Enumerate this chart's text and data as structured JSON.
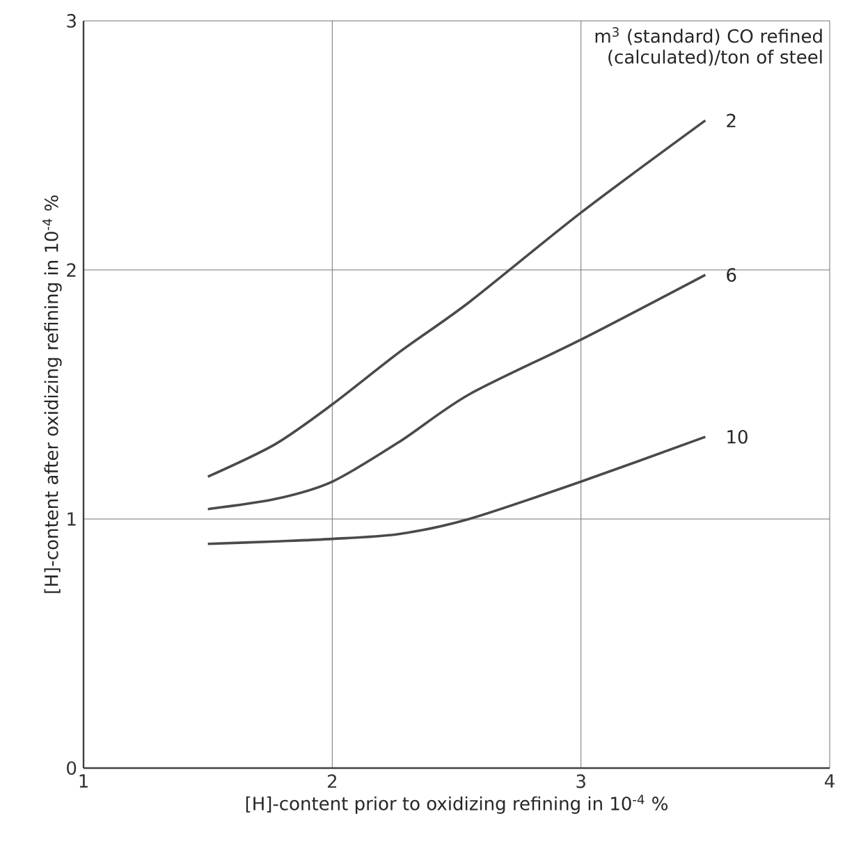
{
  "chart_data": {
    "type": "line",
    "xlabel": "[H]-content prior to oxidizing refining in 10$^{-4}$ %",
    "ylabel": "[H]-content after oxidizing refining in 10$^{-4}$ %",
    "legend_title": "m$^{3}$ (standard) CO refined (calculated)/ton of steel",
    "x": [
      1.5,
      1.77,
      2,
      2.27,
      2.55,
      3,
      3.5
    ],
    "series": [
      {
        "name": "2",
        "color": "#4a4a4a",
        "values": [
          1.17,
          1.3,
          1.46,
          1.67,
          1.87,
          2.23,
          2.6
        ]
      },
      {
        "name": "6",
        "color": "#4a4a4a",
        "values": [
          1.04,
          1.08,
          1.15,
          1.31,
          1.5,
          1.72,
          1.98
        ]
      },
      {
        "name": "10",
        "color": "#4a4a4a",
        "values": [
          0.9,
          0.91,
          0.92,
          0.94,
          1.0,
          1.15,
          1.33
        ]
      }
    ],
    "xlim": [
      1,
      4
    ],
    "ylim": [
      0,
      3
    ],
    "xticks": [
      1,
      2,
      3,
      4
    ],
    "yticks": [
      0,
      1,
      2,
      3
    ],
    "grid": true,
    "marker": "none",
    "line_style": "solid",
    "legend": false
  }
}
